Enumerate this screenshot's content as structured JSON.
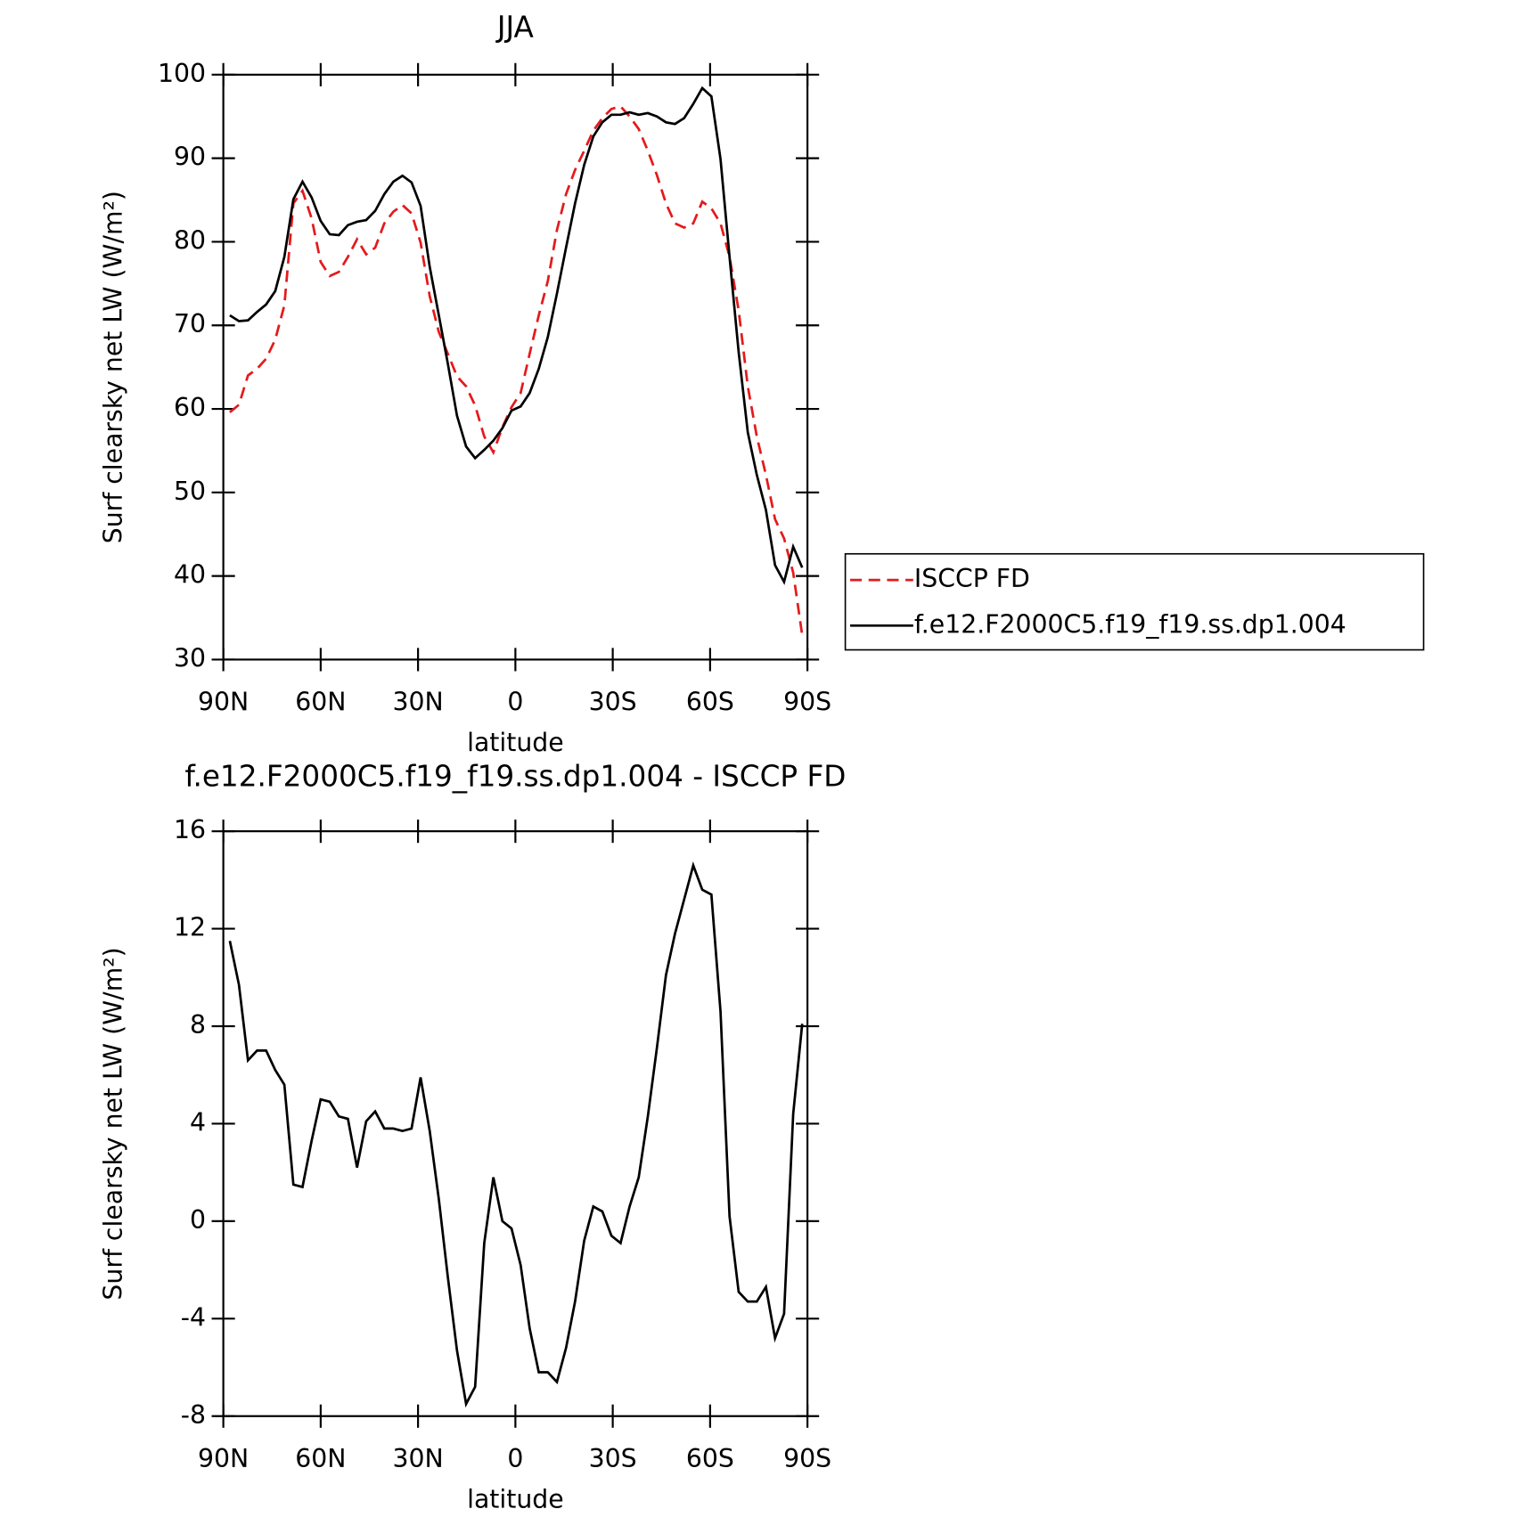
{
  "chart_data": [
    {
      "type": "line",
      "title": "JJA",
      "xlabel": "latitude",
      "ylabel": "Surf clearsky net LW (W/m²)",
      "x": [
        88,
        85.2,
        82.4,
        79.6,
        76.8,
        74,
        71.2,
        68.4,
        65.6,
        62.8,
        60,
        57.2,
        54.4,
        51.6,
        48.8,
        46,
        43.2,
        40.4,
        37.6,
        34.8,
        32,
        29.2,
        26.4,
        23.6,
        20.8,
        18,
        15.2,
        12.4,
        9.6,
        6.8,
        4,
        1.2,
        -1.6,
        -4.4,
        -7.2,
        -10,
        -12.8,
        -15.6,
        -18.4,
        -21.2,
        -24,
        -26.8,
        -29.6,
        -32.4,
        -35.2,
        -38,
        -40.8,
        -43.6,
        -46.4,
        -49.2,
        -52,
        -54.8,
        -57.6,
        -60.4,
        -63.2,
        -66,
        -68.8,
        -71.6,
        -74.4,
        -77.2,
        -80,
        -82.8,
        -85.6,
        -88.4
      ],
      "series": [
        {
          "name": "ISCCP FD",
          "color": "#e41a1c",
          "dashed": true,
          "values": [
            59.6,
            60.5,
            64.0,
            64.8,
            66.0,
            68.3,
            72.4,
            84.6,
            86.1,
            82.8,
            77.6,
            75.9,
            76.4,
            78.2,
            80.3,
            78.5,
            79.3,
            82.2,
            83.6,
            84.4,
            83.4,
            79.9,
            73.5,
            69.2,
            66.6,
            63.9,
            62.7,
            60.4,
            56.7,
            54.8,
            57.8,
            60.2,
            61.9,
            66.6,
            71.2,
            75.3,
            81.4,
            85.7,
            88.6,
            90.9,
            93.3,
            94.8,
            95.9,
            96.2,
            95.0,
            93.5,
            90.9,
            88.0,
            84.6,
            82.2,
            81.7,
            82.2,
            84.8,
            84.0,
            82.2,
            78.2,
            71.8,
            62.7,
            56.7,
            52.1,
            46.8,
            44.5,
            40.4,
            32.9
          ]
        },
        {
          "name": "f.e12.F2000C5.f19_f19.ss.dp1.004",
          "color": "#000000",
          "dashed": false,
          "values": [
            71.2,
            70.5,
            70.6,
            71.6,
            72.5,
            74.1,
            78.2,
            85.1,
            87.2,
            85.3,
            82.5,
            80.9,
            80.8,
            82.0,
            82.4,
            82.6,
            83.7,
            85.7,
            87.2,
            87.9,
            87.1,
            84.3,
            77.0,
            71.2,
            65.4,
            59.2,
            55.5,
            54.1,
            55.1,
            56.2,
            57.7,
            59.8,
            60.3,
            61.9,
            64.8,
            68.6,
            73.8,
            79.3,
            84.6,
            89.2,
            92.6,
            94.3,
            95.2,
            95.2,
            95.5,
            95.2,
            95.4,
            95.0,
            94.3,
            94.1,
            94.8,
            96.5,
            98.4,
            97.4,
            89.9,
            78.2,
            66.8,
            57.2,
            52.1,
            47.9,
            41.3,
            39.3,
            43.5,
            41.0
          ]
        }
      ],
      "xlim": [
        90,
        -90
      ],
      "xticks": [
        {
          "value": 90,
          "label": "90N"
        },
        {
          "value": 60,
          "label": "60N"
        },
        {
          "value": 30,
          "label": "30N"
        },
        0,
        {
          "value": -30,
          "label": "30S"
        },
        {
          "value": -60,
          "label": "60S"
        },
        {
          "value": -90,
          "label": "90S"
        }
      ],
      "ylim": [
        30,
        100
      ],
      "yticks": [
        30,
        40,
        50,
        60,
        70,
        80,
        90,
        100
      ],
      "legend": "right"
    },
    {
      "type": "line",
      "title": "f.e12.F2000C5.f19_f19.ss.dp1.004 - ISCCP FD",
      "xlabel": "latitude",
      "ylabel": "Surf clearsky net LW (W/m²)",
      "x": [
        88,
        85.2,
        82.4,
        79.6,
        76.8,
        74,
        71.2,
        68.4,
        65.6,
        62.8,
        60,
        57.2,
        54.4,
        51.6,
        48.8,
        46,
        43.2,
        40.4,
        37.6,
        34.8,
        32,
        29.2,
        26.4,
        23.6,
        20.8,
        18,
        15.2,
        12.4,
        9.6,
        6.8,
        4,
        1.2,
        -1.6,
        -4.4,
        -7.2,
        -10,
        -12.8,
        -15.6,
        -18.4,
        -21.2,
        -24,
        -26.8,
        -29.6,
        -32.4,
        -35.2,
        -38,
        -40.8,
        -43.6,
        -46.4,
        -49.2,
        -52,
        -54.8,
        -57.6,
        -60.4,
        -63.2,
        -66,
        -68.8,
        -71.6,
        -74.4,
        -77.2,
        -80,
        -82.8,
        -85.6,
        -88.4
      ],
      "values": [
        11.5,
        9.7,
        6.6,
        7.0,
        7.0,
        6.2,
        5.6,
        1.5,
        1.4,
        3.3,
        5.0,
        4.9,
        4.3,
        4.2,
        2.2,
        4.1,
        4.5,
        3.8,
        3.8,
        3.7,
        3.8,
        5.9,
        3.7,
        0.9,
        -2.3,
        -5.3,
        -7.5,
        -6.8,
        -0.9,
        1.8,
        0.0,
        -0.3,
        -1.8,
        -4.4,
        -6.2,
        -6.2,
        -6.6,
        -5.2,
        -3.3,
        -0.8,
        0.6,
        0.4,
        -0.6,
        -0.9,
        0.6,
        1.8,
        4.3,
        7.1,
        10.1,
        11.8,
        13.2,
        14.6,
        13.6,
        13.4,
        8.6,
        0.2,
        -2.9,
        -3.3,
        -3.3,
        -2.7,
        -4.8,
        -3.8,
        4.4,
        8.1
      ],
      "color": "#000000",
      "xlim": [
        90,
        -90
      ],
      "xticks": [
        {
          "value": 90,
          "label": "90N"
        },
        {
          "value": 60,
          "label": "60N"
        },
        {
          "value": 30,
          "label": "30N"
        },
        0,
        {
          "value": -30,
          "label": "30S"
        },
        {
          "value": -60,
          "label": "60S"
        },
        {
          "value": -90,
          "label": "90S"
        }
      ],
      "ylim": [
        -8,
        16
      ],
      "yticks": [
        -8,
        -4,
        0,
        4,
        8,
        12,
        16
      ]
    }
  ]
}
